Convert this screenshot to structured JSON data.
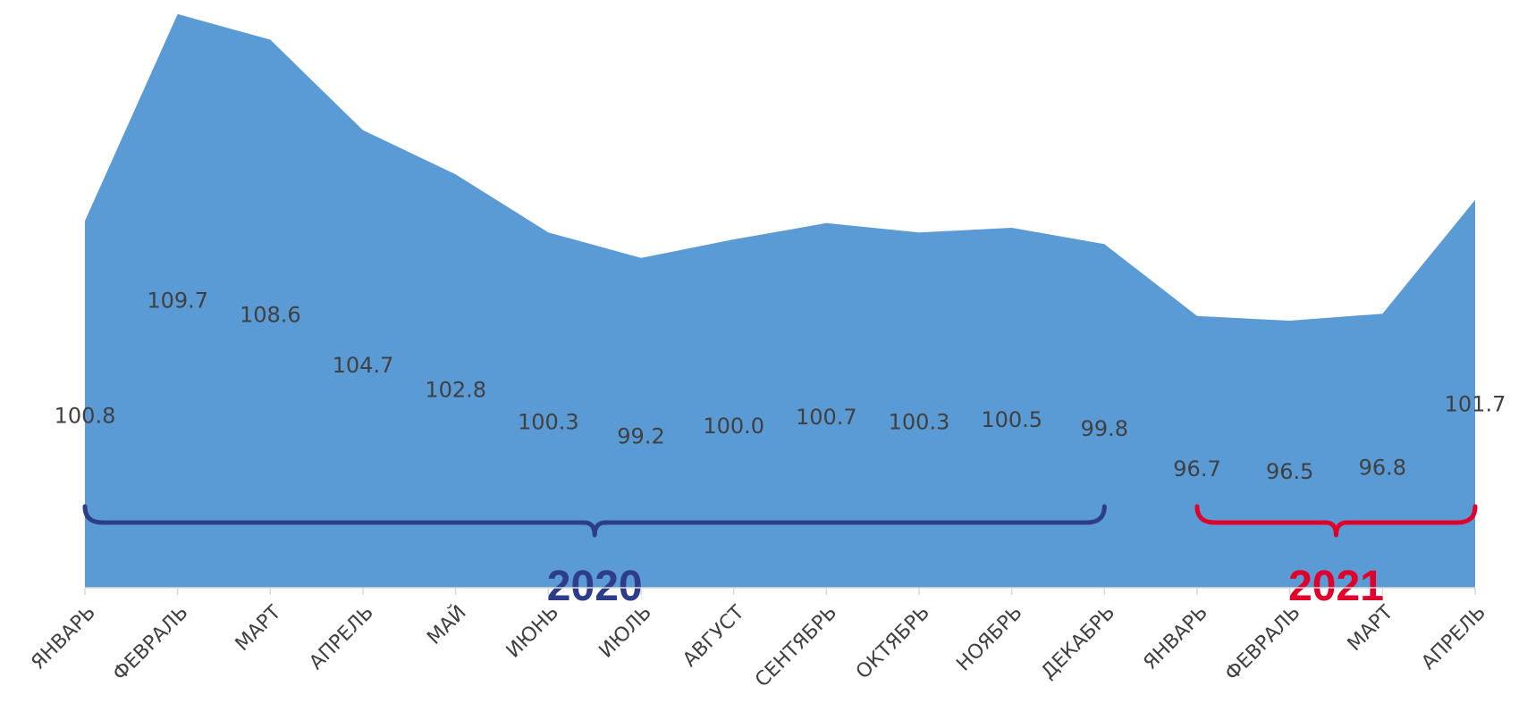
{
  "chart_data": {
    "type": "area",
    "categories": [
      "ЯНВАРЬ",
      "ФЕВРАЛЬ",
      "МАРТ",
      "АПРЕЛЬ",
      "МАЙ",
      "ИЮНЬ",
      "ИЮЛЬ",
      "АВГУСТ",
      "СЕНТЯБРЬ",
      "ОКТЯБРЬ",
      "НОЯБРЬ",
      "ДЕКАБРЬ",
      "ЯНВАРЬ",
      "ФЕВРАЛЬ",
      "МАРТ",
      "АПРЕЛЬ"
    ],
    "values": [
      100.8,
      109.7,
      108.6,
      104.7,
      102.8,
      100.3,
      99.2,
      100.0,
      100.7,
      100.3,
      100.5,
      99.8,
      96.7,
      96.5,
      96.8,
      101.7
    ],
    "data_labels": [
      "100.8",
      "109.7",
      "108.6",
      "104.7",
      "102.8",
      "100.3",
      "99.2",
      "100.0",
      "100.7",
      "100.3",
      "100.5",
      "99.8",
      "96.7",
      "96.5",
      "96.8",
      "101.7"
    ],
    "ylim": [
      85,
      110
    ],
    "grid": false,
    "series_color": "#5B9BD5",
    "groups": [
      {
        "label": "2020",
        "from": 0,
        "to": 11,
        "color": "#2E3D8A"
      },
      {
        "label": "2021",
        "from": 12,
        "to": 15,
        "color": "#E0002A"
      }
    ]
  }
}
